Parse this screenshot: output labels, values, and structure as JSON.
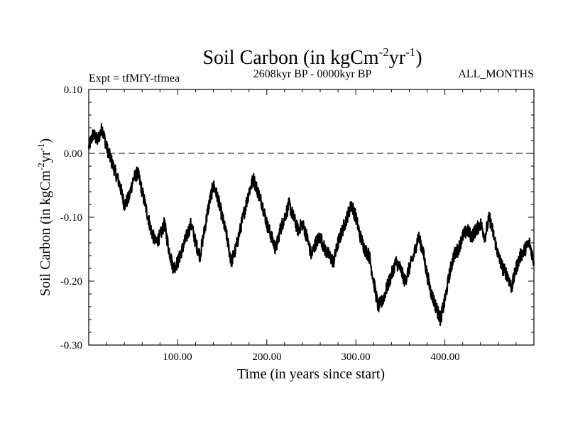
{
  "header": {
    "title_main": "Soil Carbon (in kgCm",
    "title_sup1": "-2",
    "title_mid": "yr",
    "title_sup2": "-1",
    "title_end": ")",
    "expt": "Expt = tfMfY-tfmea",
    "period": "2608kyr BP - 0000kyr BP",
    "months": "ALL_MONTHS"
  },
  "axes": {
    "ylabel_main": "Soil Carbon (in kgCm",
    "ylabel_sup1": "-2",
    "ylabel_mid": "yr",
    "ylabel_sup2": "-1",
    "ylabel_end": ")",
    "xlabel": "Time (in years since start)",
    "yticks": [
      "0.10",
      "0.00",
      "-0.10",
      "-0.20",
      "-0.30"
    ],
    "xticks": [
      "100.00",
      "200.00",
      "300.00",
      "400.00"
    ]
  },
  "colors": {
    "line": "#000000",
    "axis": "#000000",
    "background": "#ffffff"
  },
  "chart_data": {
    "type": "line",
    "title": "Soil Carbon (in kgCm-2yr-1)",
    "subtitle": "2608kyr BP - 0000kyr BP",
    "xlabel": "Time (in years since start)",
    "ylabel": "Soil Carbon (in kgCm-2yr-1)",
    "xlim": [
      0,
      500
    ],
    "ylim": [
      -0.3,
      0.1
    ],
    "ytick_values": [
      0.1,
      0.0,
      -0.1,
      -0.2,
      -0.3
    ],
    "xtick_values": [
      100,
      200,
      300,
      400
    ],
    "reference_line": {
      "y": 0.0,
      "style": "dashed"
    },
    "grid": false,
    "series": [
      {
        "name": "Soil Carbon",
        "x": [
          0,
          5,
          10,
          15,
          20,
          25,
          30,
          35,
          40,
          45,
          50,
          55,
          60,
          65,
          70,
          75,
          80,
          85,
          90,
          95,
          100,
          105,
          110,
          115,
          120,
          125,
          130,
          135,
          140,
          145,
          150,
          155,
          160,
          165,
          170,
          175,
          180,
          185,
          190,
          195,
          200,
          205,
          210,
          215,
          220,
          225,
          230,
          235,
          240,
          245,
          250,
          255,
          260,
          265,
          270,
          275,
          280,
          285,
          290,
          295,
          300,
          305,
          310,
          315,
          320,
          325,
          330,
          335,
          340,
          345,
          350,
          355,
          360,
          365,
          370,
          375,
          380,
          385,
          390,
          395,
          400,
          405,
          410,
          415,
          420,
          425,
          430,
          435,
          440,
          445,
          450,
          455,
          460,
          465,
          470,
          475,
          480,
          485,
          490,
          495,
          500
        ],
        "y": [
          0.01,
          0.03,
          0.02,
          0.04,
          0.01,
          -0.01,
          -0.03,
          -0.05,
          -0.08,
          -0.07,
          -0.04,
          -0.03,
          -0.06,
          -0.09,
          -0.12,
          -0.14,
          -0.13,
          -0.11,
          -0.15,
          -0.18,
          -0.17,
          -0.15,
          -0.13,
          -0.11,
          -0.14,
          -0.16,
          -0.12,
          -0.08,
          -0.05,
          -0.07,
          -0.1,
          -0.13,
          -0.17,
          -0.15,
          -0.12,
          -0.09,
          -0.06,
          -0.04,
          -0.06,
          -0.08,
          -0.11,
          -0.13,
          -0.15,
          -0.12,
          -0.1,
          -0.08,
          -0.1,
          -0.12,
          -0.11,
          -0.13,
          -0.16,
          -0.14,
          -0.13,
          -0.15,
          -0.16,
          -0.17,
          -0.14,
          -0.12,
          -0.1,
          -0.08,
          -0.1,
          -0.13,
          -0.15,
          -0.16,
          -0.2,
          -0.24,
          -0.23,
          -0.21,
          -0.19,
          -0.17,
          -0.18,
          -0.2,
          -0.18,
          -0.16,
          -0.13,
          -0.15,
          -0.19,
          -0.22,
          -0.24,
          -0.26,
          -0.23,
          -0.19,
          -0.16,
          -0.15,
          -0.13,
          -0.12,
          -0.13,
          -0.12,
          -0.11,
          -0.13,
          -0.1,
          -0.13,
          -0.16,
          -0.18,
          -0.19,
          -0.21,
          -0.18,
          -0.16,
          -0.15,
          -0.14,
          -0.17
        ]
      }
    ]
  }
}
